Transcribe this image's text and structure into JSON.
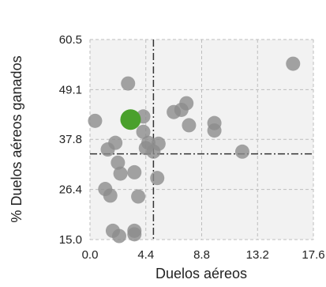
{
  "chart_data": {
    "type": "scatter",
    "xlabel": "Duelos aéreos",
    "ylabel": "% Duelos aéreos ganados",
    "xlim": [
      0.0,
      17.6
    ],
    "ylim": [
      15.0,
      60.5
    ],
    "x_ticks": [
      "0.0",
      "4.4",
      "8.8",
      "13.2",
      "17.6"
    ],
    "x_tick_values": [
      0.0,
      4.4,
      8.8,
      13.2,
      17.6
    ],
    "y_ticks": [
      "60.5",
      "49.1",
      "37.8",
      "26.4",
      "15.0"
    ],
    "y_tick_values": [
      60.5,
      49.1,
      37.8,
      26.4,
      15.0
    ],
    "grid": true,
    "reference_lines": {
      "x": 5.0,
      "y": 34.5
    },
    "colors": {
      "points": "#8c8c8c",
      "highlight": "#4aa02c",
      "grid": "#bdbdbd",
      "reference": "#333333",
      "plot_background": "#f2f2f2"
    },
    "highlight": {
      "x": 3.2,
      "y": 42.3
    },
    "points": [
      {
        "x": 0.4,
        "y": 42.0
      },
      {
        "x": 3.0,
        "y": 50.5
      },
      {
        "x": 4.2,
        "y": 43.0
      },
      {
        "x": 4.2,
        "y": 39.5
      },
      {
        "x": 2.0,
        "y": 37.0
      },
      {
        "x": 1.4,
        "y": 35.5
      },
      {
        "x": 2.2,
        "y": 32.5
      },
      {
        "x": 2.4,
        "y": 30.0
      },
      {
        "x": 3.5,
        "y": 30.3
      },
      {
        "x": 1.2,
        "y": 26.5
      },
      {
        "x": 1.6,
        "y": 25.0
      },
      {
        "x": 3.8,
        "y": 24.8
      },
      {
        "x": 5.3,
        "y": 29.0
      },
      {
        "x": 4.6,
        "y": 37.0
      },
      {
        "x": 4.4,
        "y": 35.8
      },
      {
        "x": 5.0,
        "y": 35.0
      },
      {
        "x": 5.4,
        "y": 36.8
      },
      {
        "x": 6.6,
        "y": 44.0
      },
      {
        "x": 7.2,
        "y": 44.5
      },
      {
        "x": 7.6,
        "y": 46.0
      },
      {
        "x": 7.8,
        "y": 41.0
      },
      {
        "x": 9.8,
        "y": 41.5
      },
      {
        "x": 9.8,
        "y": 39.8
      },
      {
        "x": 12.0,
        "y": 35.0
      },
      {
        "x": 16.0,
        "y": 55.0
      },
      {
        "x": 1.8,
        "y": 17.0
      },
      {
        "x": 2.3,
        "y": 15.8
      },
      {
        "x": 3.5,
        "y": 17.0
      },
      {
        "x": 3.5,
        "y": 16.2
      }
    ]
  }
}
